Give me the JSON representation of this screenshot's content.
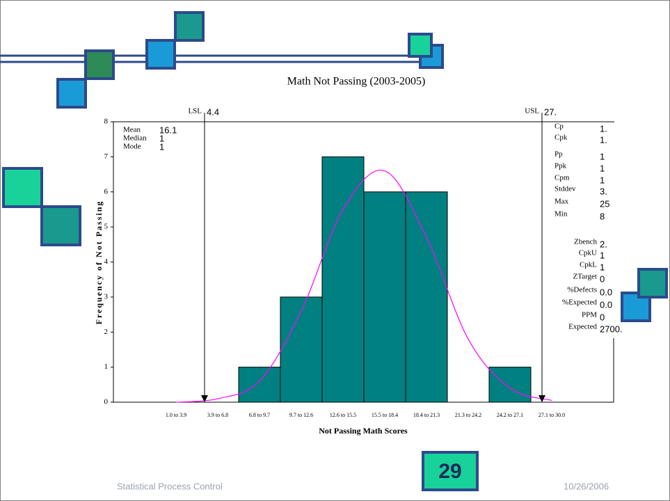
{
  "chart_data": {
    "type": "bar",
    "title": "Math Not Passing (2003-2005)",
    "x_label": "Not Passing Math Scores",
    "y_label": "Frequency of Not Passing",
    "categories": [
      "1.0 to 3.9",
      "3.9 to 6.8",
      "6.8 to 9.7",
      "9.7 to 12.6",
      "12.6 to 15.5",
      "15.5 to 18.4",
      "18.4 to 21.3",
      "21.3 to 24.2",
      "24.2 to 27.1",
      "27.1 to 30.0"
    ],
    "values": [
      0,
      0,
      1,
      3,
      7,
      6,
      6,
      0,
      1,
      0
    ],
    "color": "#008080",
    "curve": {
      "values": [
        0,
        0.1,
        0.6,
        2.6,
        5.5,
        6.6,
        4.7,
        1.8,
        0.4,
        0.05
      ],
      "color": "#ff00ff"
    },
    "ylim": [
      0,
      8
    ],
    "yticks": [
      0,
      1,
      2,
      3,
      4,
      5,
      6,
      7,
      8
    ],
    "lsl": {
      "label": "LSL",
      "value": "4.4"
    },
    "usl": {
      "label": "USL",
      "value": "27."
    },
    "left_stats": [
      {
        "label": "Mean",
        "value": "16.1"
      },
      {
        "label": "Median",
        "value": "1"
      },
      {
        "label": "Mode",
        "value": "1"
      }
    ],
    "right_stats": [
      {
        "label": "Cp",
        "value": "1."
      },
      {
        "label": "Cpk",
        "value": "1."
      },
      {
        "label": "Pp",
        "value": "1"
      },
      {
        "label": "Ppk",
        "value": "1"
      },
      {
        "label": "Cpm",
        "value": "1"
      },
      {
        "label": "Stddev",
        "value": "3."
      },
      {
        "label": "Max",
        "value": "25"
      },
      {
        "label": "Min",
        "value": "8"
      },
      {
        "label": "Zbench",
        "value": "2."
      },
      {
        "label": "CpkU",
        "value": "1"
      },
      {
        "label": "CpkL",
        "value": "1"
      },
      {
        "label": "ZTarget",
        "value": "0"
      },
      {
        "label": "%Defects",
        "value": "0.0"
      },
      {
        "label": "%Expected",
        "value": "0.0"
      },
      {
        "label": "PPM",
        "value": "0"
      },
      {
        "label": "Expected",
        "value": "2700."
      }
    ]
  },
  "footer": {
    "left": "Statistical Process Control",
    "page": "29",
    "date": "10/26/2006"
  }
}
